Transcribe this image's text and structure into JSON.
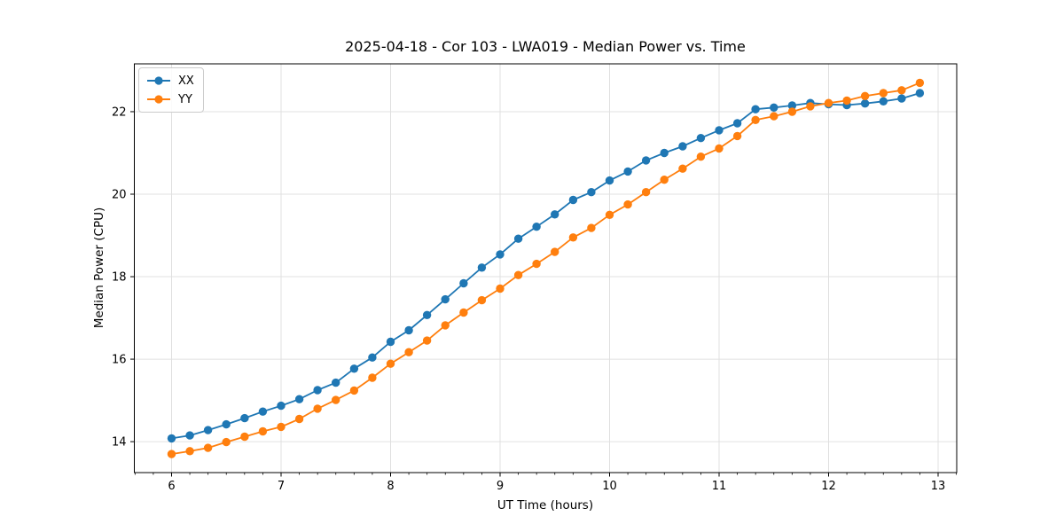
{
  "chart_data": {
    "type": "line",
    "title": "2025-04-18 - Cor 103 - LWA019 - Median Power vs. Time",
    "xlabel": "UT Time (hours)",
    "ylabel": "Median Power (CPU)",
    "xlim": [
      5.66,
      13.17
    ],
    "ylim": [
      13.25,
      23.16
    ],
    "x_ticks": [
      6,
      7,
      8,
      9,
      10,
      11,
      12,
      13
    ],
    "y_ticks": [
      14,
      16,
      18,
      20,
      22
    ],
    "x_minor_tick_step": 0.166667,
    "grid": true,
    "legend_position": "upper left",
    "background_color": "#ffffff",
    "grid_color": "#e0e0e0",
    "x": [
      6.0,
      6.167,
      6.333,
      6.5,
      6.667,
      6.833,
      7.0,
      7.167,
      7.333,
      7.5,
      7.667,
      7.833,
      8.0,
      8.167,
      8.333,
      8.5,
      8.667,
      8.833,
      9.0,
      9.167,
      9.333,
      9.5,
      9.667,
      9.833,
      10.0,
      10.167,
      10.333,
      10.5,
      10.667,
      10.833,
      11.0,
      11.167,
      11.333,
      11.5,
      11.667,
      11.833,
      12.0,
      12.167,
      12.333,
      12.5,
      12.667,
      12.833
    ],
    "series": [
      {
        "name": "XX",
        "color": "#1f77b4",
        "values": [
          14.08,
          14.15,
          14.28,
          14.42,
          14.57,
          14.73,
          14.87,
          15.03,
          15.25,
          15.43,
          15.77,
          16.04,
          16.42,
          16.7,
          17.07,
          17.45,
          17.84,
          18.22,
          18.54,
          18.92,
          19.21,
          19.51,
          19.86,
          20.05,
          20.33,
          20.55,
          20.82,
          21.0,
          21.16,
          21.36,
          21.55,
          21.72,
          22.06,
          22.1,
          22.15,
          22.21,
          22.18,
          22.16,
          22.2,
          22.25,
          22.32,
          22.45
        ]
      },
      {
        "name": "YY",
        "color": "#ff7f0e",
        "values": [
          13.7,
          13.77,
          13.85,
          13.99,
          14.12,
          14.25,
          14.36,
          14.55,
          14.8,
          15.01,
          15.24,
          15.55,
          15.89,
          16.17,
          16.45,
          16.82,
          17.13,
          17.43,
          17.71,
          18.04,
          18.31,
          18.6,
          18.95,
          19.18,
          19.5,
          19.75,
          20.05,
          20.35,
          20.62,
          20.91,
          21.11,
          21.41,
          21.8,
          21.89,
          22.0,
          22.13,
          22.21,
          22.27,
          22.38,
          22.45,
          22.52,
          22.7
        ]
      }
    ]
  }
}
